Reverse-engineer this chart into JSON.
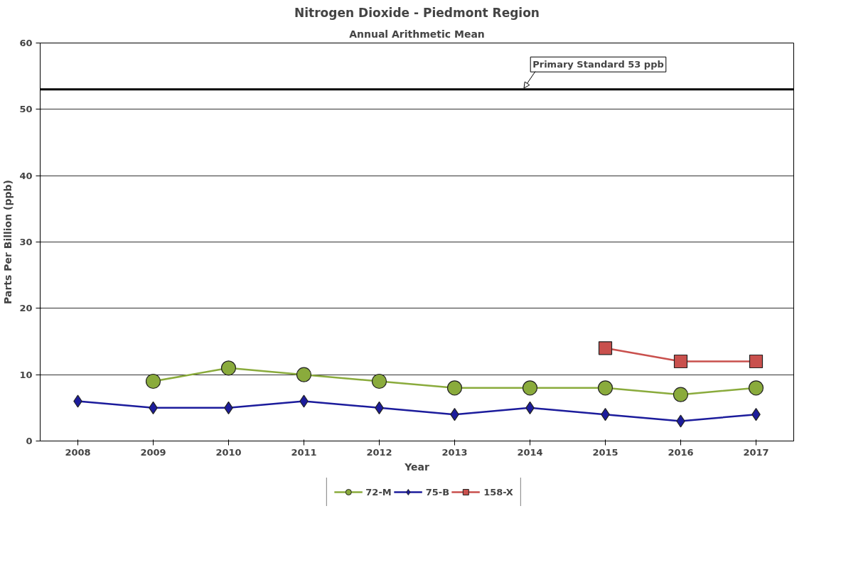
{
  "chart_data": {
    "type": "line",
    "title": "Nitrogen Dioxide - Piedmont Region",
    "subtitle": "Annual Arithmetic Mean",
    "xlabel": "Year",
    "ylabel": "Parts Per Billion (ppb)",
    "categories": [
      "2008",
      "2009",
      "2010",
      "2011",
      "2012",
      "2013",
      "2014",
      "2015",
      "2016",
      "2017"
    ],
    "series": [
      {
        "name": "72-M",
        "color": "#8aab3c",
        "marker": "circle",
        "values": [
          null,
          9,
          11,
          10,
          9,
          8,
          8,
          8,
          7,
          8
        ]
      },
      {
        "name": "75-B",
        "color": "#1c1c9c",
        "marker": "diamond",
        "values": [
          6,
          5,
          5,
          6,
          5,
          4,
          5,
          4,
          3,
          4
        ]
      },
      {
        "name": "158-X",
        "color": "#c9504d",
        "marker": "square",
        "values": [
          null,
          null,
          null,
          null,
          null,
          null,
          null,
          14,
          12,
          12
        ]
      }
    ],
    "ylim": [
      0,
      60
    ],
    "yticks": [
      0,
      10,
      20,
      30,
      40,
      50,
      60
    ],
    "grid": "y",
    "legend": "bottom",
    "ref_lines": [
      {
        "axis": "y",
        "value": 53,
        "label": "Primary Standard 53 ppb",
        "color": "#000000"
      }
    ]
  }
}
